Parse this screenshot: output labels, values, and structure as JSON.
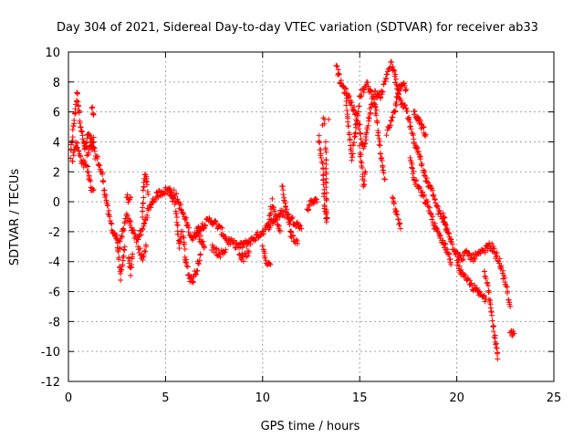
{
  "chart_data": {
    "type": "scatter",
    "title": "Day 304 of 2021, Sidereal Day-to-day VTEC variation (SDTVAR) for receiver ab33",
    "xlabel": "GPS time / hours",
    "ylabel": "SDTVAR / TECUs",
    "xlim": [
      0,
      25
    ],
    "ylim": [
      -12,
      10
    ],
    "xticks": [
      "0",
      "5",
      "10",
      "15",
      "20",
      "25"
    ],
    "yticks": [
      "-12",
      "-10",
      "-8",
      "-6",
      "-4",
      "-2",
      "0",
      "2",
      "4",
      "6",
      "8",
      "10"
    ],
    "grid": true,
    "marker": "+",
    "series": [
      {
        "name": "SDTVAR",
        "color": "#ff0000",
        "tracks": [
          [
            [
              0.1,
              3.0
            ],
            [
              0.3,
              5.5
            ],
            [
              0.45,
              7.3
            ],
            [
              0.55,
              6.0
            ],
            [
              0.7,
              4.5
            ],
            [
              0.85,
              3.5
            ],
            [
              1.0,
              4.5
            ],
            [
              1.2,
              4.0
            ],
            [
              1.35,
              3.2
            ],
            [
              1.5,
              2.8
            ],
            [
              1.7,
              2.0
            ],
            [
              1.9,
              0.5
            ],
            [
              2.1,
              -1.0
            ],
            [
              2.3,
              -2.0
            ],
            [
              2.5,
              -2.5
            ],
            [
              2.65,
              -3.0
            ],
            [
              2.8,
              -2.0
            ],
            [
              3.0,
              -1.0
            ],
            [
              3.2,
              -1.5
            ],
            [
              3.5,
              -2.5
            ],
            [
              3.8,
              -2.0
            ],
            [
              4.0,
              -1.0
            ],
            [
              4.3,
              0.0
            ],
            [
              4.6,
              0.5
            ],
            [
              4.9,
              0.7
            ],
            [
              5.2,
              0.8
            ],
            [
              5.5,
              0.5
            ],
            [
              5.8,
              -0.5
            ],
            [
              6.1,
              -1.5
            ],
            [
              6.4,
              -2.5
            ],
            [
              6.7,
              -1.8
            ],
            [
              7.0,
              -1.5
            ],
            [
              7.3,
              -1.2
            ],
            [
              7.6,
              -1.5
            ],
            [
              7.9,
              -2.0
            ],
            [
              8.2,
              -2.6
            ],
            [
              8.5,
              -2.8
            ],
            [
              8.8,
              -3.0
            ],
            [
              9.1,
              -2.8
            ],
            [
              9.4,
              -2.6
            ],
            [
              9.7,
              -2.3
            ],
            [
              10.0,
              -2.0
            ],
            [
              10.3,
              -1.6
            ],
            [
              10.6,
              -1.2
            ],
            [
              10.9,
              -0.8
            ],
            [
              11.2,
              -0.8
            ],
            [
              11.5,
              -1.2
            ],
            [
              11.8,
              -1.5
            ],
            [
              12.0,
              -1.8
            ]
          ],
          [
            [
              0.2,
              2.8
            ],
            [
              0.4,
              4.0
            ],
            [
              0.6,
              3.0
            ],
            [
              0.8,
              2.5
            ],
            [
              1.0,
              2.2
            ],
            [
              1.15,
              1.0
            ],
            [
              1.3,
              0.8
            ]
          ],
          [
            [
              0.8,
              4.0
            ],
            [
              1.0,
              3.2
            ],
            [
              1.2,
              3.8
            ],
            [
              1.3,
              4.3
            ]
          ],
          [
            [
              1.2,
              6.2
            ],
            [
              1.3,
              5.8
            ]
          ],
          [
            [
              2.5,
              -2.5
            ],
            [
              2.6,
              -4.0
            ],
            [
              2.7,
              -5.0
            ],
            [
              2.8,
              -4.0
            ],
            [
              2.9,
              -3.0
            ]
          ],
          [
            [
              3.1,
              -3.5
            ],
            [
              3.2,
              -4.8
            ],
            [
              3.3,
              -3.5
            ]
          ],
          [
            [
              3.0,
              0.5
            ],
            [
              3.1,
              0.0
            ],
            [
              3.2,
              0.3
            ]
          ],
          [
            [
              3.8,
              -1.0
            ],
            [
              3.9,
              1.5
            ],
            [
              4.0,
              1.8
            ],
            [
              4.1,
              0.5
            ]
          ],
          [
            [
              3.6,
              -3.0
            ],
            [
              3.8,
              -3.8
            ],
            [
              4.0,
              -3.0
            ]
          ],
          [
            [
              5.2,
              0.5
            ],
            [
              5.5,
              0.0
            ],
            [
              5.6,
              -1.5
            ],
            [
              5.7,
              -3.0
            ],
            [
              5.8,
              -2.0
            ]
          ],
          [
            [
              5.9,
              -2.0
            ],
            [
              6.0,
              -3.5
            ],
            [
              6.2,
              -5.0
            ],
            [
              6.4,
              -5.3
            ],
            [
              6.6,
              -4.5
            ],
            [
              6.8,
              -3.5
            ]
          ],
          [
            [
              6.6,
              -2.0
            ],
            [
              6.8,
              -2.5
            ],
            [
              7.0,
              -3.0
            ]
          ],
          [
            [
              7.4,
              -3.0
            ],
            [
              7.8,
              -3.5
            ],
            [
              8.1,
              -3.2
            ]
          ],
          [
            [
              8.8,
              -3.5
            ],
            [
              9.0,
              -3.8
            ],
            [
              9.3,
              -3.3
            ]
          ],
          [
            [
              10.0,
              -3.2
            ],
            [
              10.2,
              -4.0
            ],
            [
              10.4,
              -4.2
            ]
          ],
          [
            [
              10.3,
              -1.5
            ],
            [
              10.5,
              0.0
            ],
            [
              10.7,
              -1.0
            ],
            [
              10.9,
              -2.0
            ]
          ],
          [
            [
              11.0,
              1.0
            ],
            [
              11.2,
              -0.5
            ],
            [
              11.4,
              -1.5
            ]
          ],
          [
            [
              11.4,
              -2.0
            ],
            [
              11.6,
              -2.5
            ],
            [
              11.8,
              -2.8
            ]
          ],
          [
            [
              12.3,
              -0.5
            ],
            [
              12.5,
              0.0
            ],
            [
              12.8,
              0.0
            ]
          ],
          [
            [
              12.9,
              4.5
            ],
            [
              13.0,
              3.0
            ],
            [
              13.1,
              2.5
            ],
            [
              13.2,
              -0.5
            ],
            [
              13.3,
              -1.0
            ],
            [
              13.3,
              -1.5
            ],
            [
              13.25,
              4.0
            ]
          ],
          [
            [
              13.1,
              5.3
            ],
            [
              13.2,
              5.5
            ]
          ],
          [
            [
              13.4,
              5.5
            ]
          ],
          [
            [
              13.8,
              9.0
            ],
            [
              14.0,
              8.0
            ],
            [
              14.2,
              7.5
            ],
            [
              14.4,
              7.0
            ],
            [
              14.6,
              6.5
            ],
            [
              14.8,
              5.8
            ],
            [
              15.0,
              5.0
            ],
            [
              15.1,
              4.0
            ],
            [
              15.2,
              3.5
            ],
            [
              15.4,
              5.0
            ],
            [
              15.6,
              6.5
            ],
            [
              15.8,
              7.3
            ],
            [
              16.0,
              7.0
            ],
            [
              16.2,
              7.5
            ],
            [
              16.4,
              8.5
            ],
            [
              16.6,
              9.2
            ],
            [
              16.8,
              8.5
            ],
            [
              17.0,
              7.0
            ],
            [
              17.2,
              6.5
            ],
            [
              17.4,
              6.2
            ],
            [
              17.6,
              5.0
            ],
            [
              17.8,
              4.0
            ],
            [
              18.0,
              3.5
            ],
            [
              18.2,
              2.5
            ],
            [
              18.4,
              1.5
            ],
            [
              18.6,
              1.0
            ],
            [
              18.8,
              0.5
            ],
            [
              19.0,
              -0.5
            ],
            [
              19.2,
              -1.0
            ],
            [
              19.4,
              -1.5
            ],
            [
              19.6,
              -2.0
            ],
            [
              19.8,
              -3.0
            ],
            [
              20.0,
              -3.5
            ],
            [
              20.2,
              -3.8
            ],
            [
              20.4,
              -3.5
            ],
            [
              20.6,
              -3.5
            ],
            [
              20.8,
              -3.8
            ],
            [
              21.0,
              -3.6
            ],
            [
              21.2,
              -3.5
            ],
            [
              21.4,
              -3.3
            ],
            [
              21.6,
              -3.0
            ],
            [
              21.8,
              -3.0
            ],
            [
              22.0,
              -3.5
            ],
            [
              22.2,
              -4.0
            ],
            [
              22.4,
              -5.0
            ],
            [
              22.6,
              -6.0
            ],
            [
              22.75,
              -7.0
            ]
          ],
          [
            [
              14.3,
              6.5
            ],
            [
              14.5,
              4.0
            ],
            [
              14.6,
              3.0
            ],
            [
              14.8,
              5.0
            ],
            [
              15.0,
              7.0
            ],
            [
              15.2,
              7.5
            ],
            [
              15.4,
              7.8
            ],
            [
              15.6,
              7.2
            ],
            [
              15.8,
              6.5
            ],
            [
              16.0,
              4.0
            ],
            [
              16.2,
              2.0
            ],
            [
              16.3,
              1.5
            ]
          ],
          [
            [
              15.0,
              3.5
            ],
            [
              15.1,
              2.5
            ],
            [
              15.2,
              1.0
            ],
            [
              15.3,
              2.0
            ]
          ],
          [
            [
              16.4,
              4.5
            ],
            [
              16.6,
              5.5
            ],
            [
              16.8,
              6.0
            ],
            [
              17.0,
              7.5
            ],
            [
              17.2,
              8.0
            ],
            [
              17.4,
              7.5
            ]
          ],
          [
            [
              16.7,
              0.5
            ],
            [
              16.9,
              -1.0
            ],
            [
              17.0,
              -1.2
            ],
            [
              17.1,
              -1.8
            ]
          ],
          [
            [
              17.6,
              3.0
            ],
            [
              17.8,
              1.5
            ],
            [
              18.0,
              1.0
            ],
            [
              18.2,
              0.5
            ],
            [
              18.4,
              0.0
            ],
            [
              18.6,
              -0.5
            ],
            [
              18.8,
              -1.5
            ],
            [
              19.0,
              -2.0
            ],
            [
              19.2,
              -2.5
            ],
            [
              19.4,
              -3.0
            ],
            [
              19.6,
              -3.5
            ],
            [
              19.7,
              -4.2
            ]
          ],
          [
            [
              17.8,
              6.0
            ],
            [
              18.0,
              5.5
            ],
            [
              18.2,
              5.0
            ],
            [
              18.4,
              4.5
            ]
          ],
          [
            [
              19.3,
              -1.0
            ],
            [
              19.5,
              -2.0
            ]
          ],
          [
            [
              20.0,
              -4.0
            ],
            [
              20.3,
              -5.0
            ],
            [
              20.6,
              -5.3
            ],
            [
              20.9,
              -5.8
            ],
            [
              21.2,
              -6.2
            ],
            [
              21.5,
              -6.5
            ]
          ],
          [
            [
              21.4,
              -4.5
            ],
            [
              21.6,
              -5.5
            ],
            [
              21.7,
              -6.5
            ],
            [
              21.8,
              -7.5
            ],
            [
              21.9,
              -8.5
            ],
            [
              21.95,
              -9.0
            ],
            [
              22.05,
              -9.8
            ],
            [
              22.1,
              -10.5
            ]
          ],
          [
            [
              22.75,
              -8.7
            ],
            [
              22.85,
              -8.9
            ],
            [
              22.95,
              -8.8
            ]
          ]
        ]
      }
    ]
  }
}
